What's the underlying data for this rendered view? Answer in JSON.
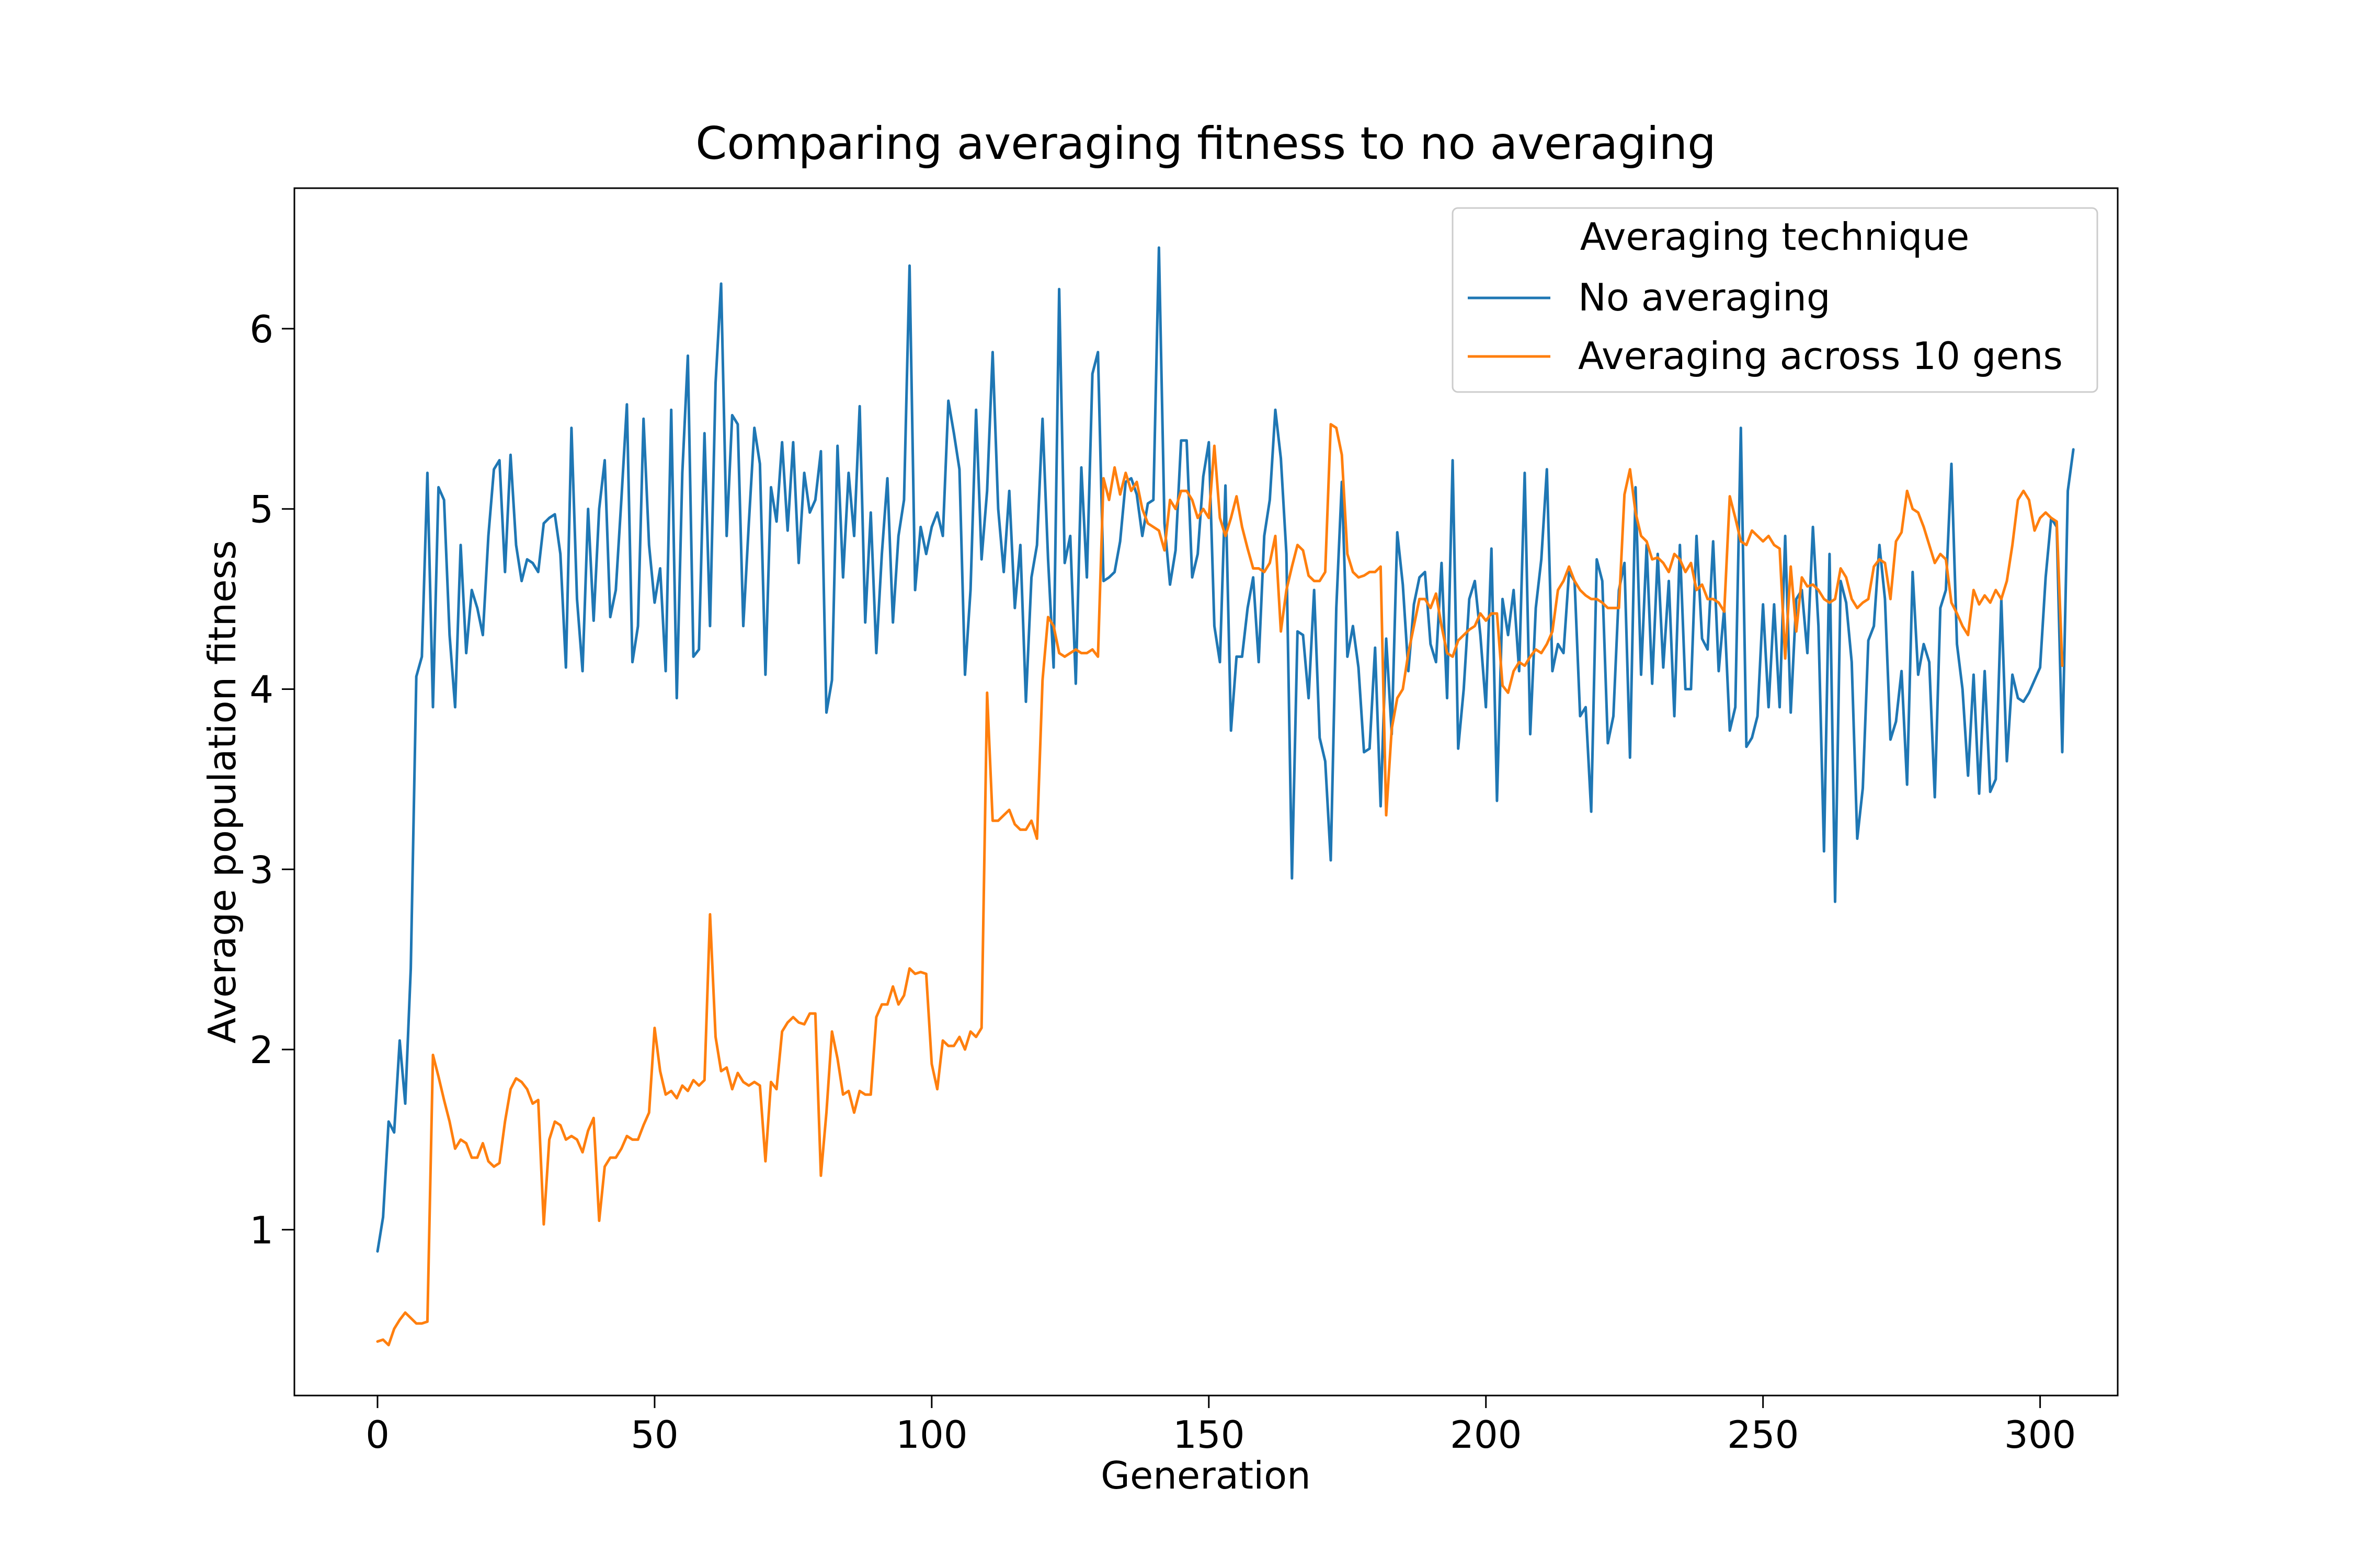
{
  "chart_data": {
    "type": "line",
    "title": "Comparing averaging fitness to no averaging",
    "xlabel": "Generation",
    "ylabel": "Average population fitness",
    "xlim": [
      -15,
      314
    ],
    "ylim": [
      0.08,
      6.78
    ],
    "x_ticks": [
      0,
      50,
      100,
      150,
      200,
      250,
      300
    ],
    "y_ticks": [
      1,
      2,
      3,
      4,
      5,
      6
    ],
    "grid": false,
    "legend": {
      "title": "Averaging technique",
      "placement": "top-right"
    },
    "series": [
      {
        "name": "No averaging",
        "color": "#1f77b4",
        "x_start": 0,
        "x_step": 1,
        "values": [
          0.88,
          1.07,
          1.6,
          1.54,
          2.05,
          1.7,
          2.45,
          4.07,
          4.18,
          5.2,
          3.9,
          5.12,
          5.05,
          4.3,
          3.9,
          4.8,
          4.2,
          4.55,
          4.45,
          4.3,
          4.85,
          5.22,
          5.27,
          4.65,
          5.3,
          4.8,
          4.6,
          4.72,
          4.7,
          4.65,
          4.92,
          4.95,
          4.97,
          4.75,
          4.12,
          5.45,
          4.5,
          4.1,
          5.0,
          4.38,
          5.0,
          5.27,
          4.4,
          4.55,
          5.05,
          5.58,
          4.15,
          4.35,
          5.5,
          4.8,
          4.48,
          4.67,
          4.1,
          5.55,
          3.95,
          5.2,
          5.85,
          4.18,
          4.22,
          5.42,
          4.35,
          5.7,
          6.25,
          4.85,
          5.52,
          5.47,
          4.35,
          4.92,
          5.45,
          5.25,
          4.08,
          5.12,
          4.93,
          5.37,
          4.88,
          5.37,
          4.7,
          5.2,
          4.98,
          5.05,
          5.32,
          3.87,
          4.05,
          5.35,
          4.62,
          5.2,
          4.85,
          5.57,
          4.37,
          4.98,
          4.2,
          4.75,
          5.17,
          4.37,
          4.85,
          5.05,
          6.35,
          4.55,
          4.9,
          4.75,
          4.9,
          4.98,
          4.85,
          5.6,
          5.42,
          5.22,
          4.08,
          4.55,
          5.55,
          4.72,
          5.1,
          5.87,
          5.0,
          4.65,
          5.1,
          4.45,
          4.8,
          3.93,
          4.62,
          4.8,
          5.5,
          4.72,
          4.12,
          6.22,
          4.7,
          4.85,
          4.03,
          5.23,
          4.62,
          5.75,
          5.87,
          4.6,
          4.62,
          4.65,
          4.82,
          5.15,
          5.17,
          5.08,
          4.85,
          5.03,
          5.05,
          6.45,
          4.92,
          4.58,
          4.77,
          5.38,
          5.38,
          4.62,
          4.75,
          5.18,
          5.37,
          4.35,
          4.15,
          5.13,
          3.77,
          4.18,
          4.18,
          4.45,
          4.62,
          4.15,
          4.85,
          5.05,
          5.55,
          5.28,
          4.75,
          2.95,
          4.32,
          4.3,
          3.95,
          4.55,
          3.73,
          3.6,
          3.05,
          4.45,
          5.15,
          4.18,
          4.35,
          4.12,
          3.65,
          3.67,
          4.23,
          3.35,
          4.28,
          3.75,
          4.87,
          4.58,
          4.1,
          4.47,
          4.62,
          4.65,
          4.25,
          4.15,
          4.7,
          3.95,
          5.27,
          3.67,
          4.0,
          4.5,
          4.6,
          4.3,
          3.9,
          4.78,
          3.38,
          4.5,
          4.3,
          4.55,
          4.1,
          5.2,
          3.75,
          4.45,
          4.72,
          5.22,
          4.1,
          4.25,
          4.2,
          4.65,
          4.6,
          3.85,
          3.9,
          3.32,
          4.72,
          4.6,
          3.7,
          3.85,
          4.55,
          4.7,
          3.62,
          5.12,
          4.08,
          4.8,
          4.03,
          4.75,
          4.12,
          4.6,
          3.85,
          4.8,
          4.0,
          4.0,
          4.85,
          4.28,
          4.22,
          4.82,
          4.1,
          4.45,
          3.77,
          3.9,
          5.45,
          3.68,
          3.73,
          3.85,
          4.47,
          3.9,
          4.47,
          3.9,
          4.85,
          3.87,
          4.5,
          4.55,
          4.2,
          4.9,
          4.35,
          3.1,
          4.75,
          2.82,
          4.6,
          4.48,
          4.15,
          3.17,
          3.45,
          4.27,
          4.35,
          4.8,
          4.5,
          3.72,
          3.82,
          4.1,
          3.47,
          4.65,
          4.08,
          4.25,
          4.15,
          3.4,
          4.45,
          4.55,
          5.25,
          4.25,
          4.0,
          3.52,
          4.08,
          3.42,
          4.1,
          3.43,
          3.5,
          4.5,
          3.6,
          4.08,
          3.95,
          3.93,
          3.98,
          4.05,
          4.12,
          4.62,
          4.95,
          4.9,
          3.65,
          5.1,
          5.33
        ]
      },
      {
        "name": "Averaging across 10 gens",
        "color": "#ff7f0e",
        "x_start": 0,
        "x_step": 1,
        "values": [
          0.38,
          0.39,
          0.36,
          0.45,
          0.5,
          0.54,
          0.51,
          0.48,
          0.48,
          0.49,
          1.97,
          1.85,
          1.72,
          1.6,
          1.45,
          1.5,
          1.48,
          1.4,
          1.4,
          1.48,
          1.38,
          1.35,
          1.37,
          1.6,
          1.78,
          1.84,
          1.82,
          1.78,
          1.7,
          1.72,
          1.03,
          1.5,
          1.6,
          1.58,
          1.5,
          1.52,
          1.5,
          1.43,
          1.55,
          1.62,
          1.05,
          1.35,
          1.4,
          1.4,
          1.45,
          1.52,
          1.5,
          1.5,
          1.58,
          1.65,
          2.12,
          1.88,
          1.75,
          1.77,
          1.73,
          1.8,
          1.77,
          1.83,
          1.8,
          1.83,
          2.75,
          2.07,
          1.88,
          1.9,
          1.78,
          1.87,
          1.82,
          1.8,
          1.82,
          1.8,
          1.38,
          1.82,
          1.78,
          2.1,
          2.15,
          2.18,
          2.15,
          2.14,
          2.2,
          2.2,
          1.3,
          1.65,
          2.1,
          1.95,
          1.75,
          1.77,
          1.65,
          1.77,
          1.75,
          1.75,
          2.18,
          2.25,
          2.25,
          2.35,
          2.25,
          2.3,
          2.45,
          2.42,
          2.43,
          2.42,
          1.92,
          1.78,
          2.05,
          2.02,
          2.02,
          2.07,
          2.0,
          2.1,
          2.07,
          2.12,
          3.98,
          3.27,
          3.27,
          3.3,
          3.33,
          3.25,
          3.22,
          3.22,
          3.27,
          3.17,
          4.05,
          4.4,
          4.35,
          4.2,
          4.18,
          4.2,
          4.22,
          4.2,
          4.2,
          4.22,
          4.18,
          5.17,
          5.05,
          5.23,
          5.08,
          5.2,
          5.1,
          5.15,
          5.0,
          4.92,
          4.9,
          4.88,
          4.77,
          5.05,
          5.0,
          5.1,
          5.1,
          5.05,
          4.95,
          5.0,
          4.95,
          5.35,
          4.95,
          4.85,
          4.95,
          5.07,
          4.9,
          4.78,
          4.67,
          4.67,
          4.65,
          4.7,
          4.85,
          4.32,
          4.55,
          4.68,
          4.8,
          4.77,
          4.63,
          4.6,
          4.6,
          4.65,
          5.47,
          5.45,
          5.3,
          4.75,
          4.65,
          4.62,
          4.63,
          4.65,
          4.65,
          4.68,
          3.3,
          3.78,
          3.95,
          4.0,
          4.2,
          4.35,
          4.5,
          4.5,
          4.45,
          4.53,
          4.35,
          4.2,
          4.18,
          4.27,
          4.3,
          4.33,
          4.35,
          4.42,
          4.38,
          4.42,
          4.42,
          4.02,
          3.98,
          4.1,
          4.15,
          4.13,
          4.18,
          4.22,
          4.2,
          4.25,
          4.32,
          4.55,
          4.6,
          4.68,
          4.6,
          4.55,
          4.52,
          4.5,
          4.5,
          4.48,
          4.45,
          4.45,
          4.45,
          5.08,
          5.22,
          4.98,
          4.85,
          4.82,
          4.72,
          4.73,
          4.7,
          4.65,
          4.75,
          4.72,
          4.65,
          4.7,
          4.55,
          4.58,
          4.5,
          4.5,
          4.48,
          4.43,
          5.07,
          4.95,
          4.82,
          4.8,
          4.88,
          4.85,
          4.82,
          4.85,
          4.8,
          4.78,
          4.17,
          4.68,
          4.32,
          4.62,
          4.57,
          4.58,
          4.55,
          4.5,
          4.48,
          4.5,
          4.67,
          4.62,
          4.5,
          4.45,
          4.48,
          4.5,
          4.68,
          4.72,
          4.7,
          4.5,
          4.82,
          4.87,
          5.1,
          5.0,
          4.98,
          4.9,
          4.8,
          4.7,
          4.75,
          4.72,
          4.48,
          4.42,
          4.35,
          4.3,
          4.55,
          4.47,
          4.52,
          4.48,
          4.55,
          4.5,
          4.6,
          4.8,
          5.05,
          5.1,
          5.05,
          4.88,
          4.95,
          4.98,
          4.95,
          4.93,
          4.13
        ]
      }
    ]
  }
}
